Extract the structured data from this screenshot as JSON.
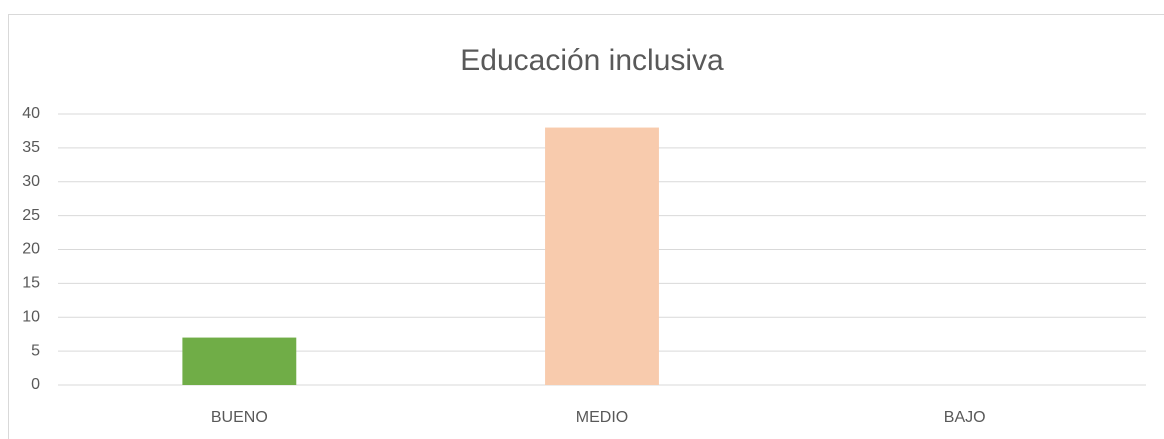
{
  "chart_data": {
    "type": "bar",
    "title": "Educación inclusiva",
    "categories": [
      "BUENO",
      "MEDIO",
      "BAJO"
    ],
    "values": [
      7,
      38,
      0
    ],
    "colors": [
      "#70ad47",
      "#f8cbad",
      "#a5a5a5"
    ],
    "ylim": [
      0,
      40
    ],
    "yticks": [
      0,
      5,
      10,
      15,
      20,
      25,
      30,
      35,
      40
    ],
    "grid": true
  }
}
